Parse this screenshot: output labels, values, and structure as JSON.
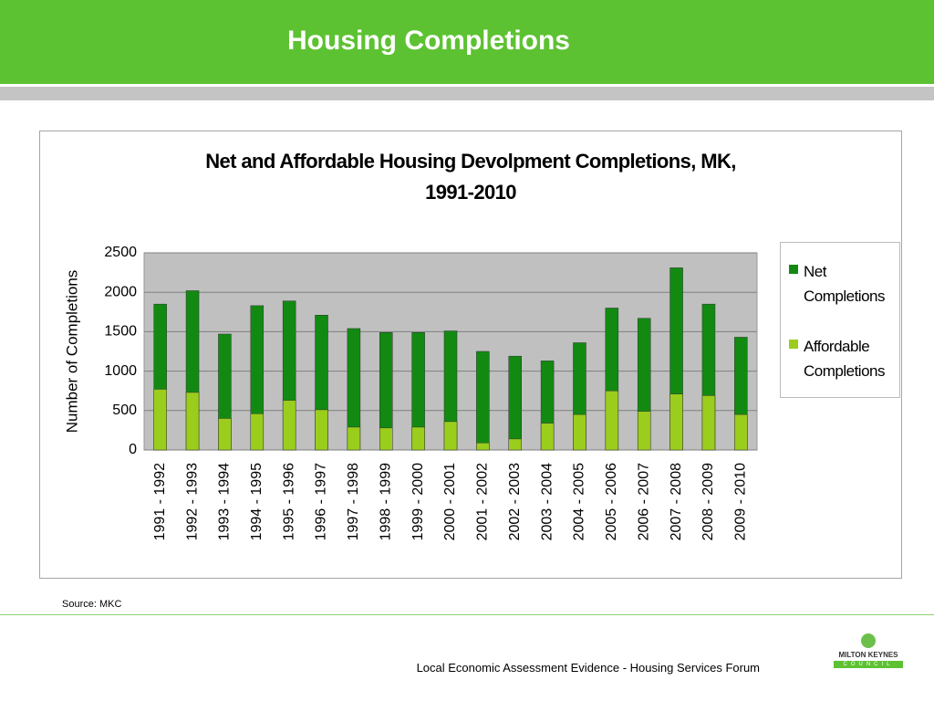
{
  "header": {
    "title": "Housing Completions"
  },
  "chart_data": {
    "type": "bar",
    "title": "Net and Affordable Housing Devolpment Completions, MK, 1991-2010",
    "y_label": "Number of Completions",
    "categories": [
      "1991 - 1992",
      "1992 - 1993",
      "1993 - 1994",
      "1994 - 1995",
      "1995 - 1996",
      "1996 - 1997",
      "1997 - 1998",
      "1998 - 1999",
      "1999 - 2000",
      "2000 - 2001",
      "2001 - 2002",
      "2002 - 2003",
      "2003 - 2004",
      "2004 - 2005",
      "2005 - 2006",
      "2006 - 2007",
      "2007 - 2008",
      "2008 - 2009",
      "2009 - 2010"
    ],
    "series": [
      {
        "name": "Net Completions",
        "color": "#128a12",
        "values": [
          1850,
          2020,
          1470,
          1830,
          1890,
          1710,
          1540,
          1490,
          1490,
          1510,
          1250,
          1190,
          1130,
          1360,
          1800,
          1670,
          2310,
          1850,
          1430
        ]
      },
      {
        "name": "Affordable Completions",
        "color": "#9acd1c",
        "values": [
          770,
          730,
          400,
          460,
          630,
          510,
          290,
          280,
          290,
          360,
          90,
          140,
          340,
          450,
          750,
          490,
          710,
          690,
          450
        ]
      }
    ],
    "ylim": [
      0,
      2500
    ],
    "yticks": [
      0,
      500,
      1000,
      1500,
      2000,
      2500
    ],
    "grid": true,
    "legend": "right"
  },
  "source": "Source: MKC",
  "footer": "Local Economic Assessment Evidence - Housing Services Forum",
  "logo": {
    "name": "MILTON KEYNES",
    "sub": "COUNCIL"
  }
}
